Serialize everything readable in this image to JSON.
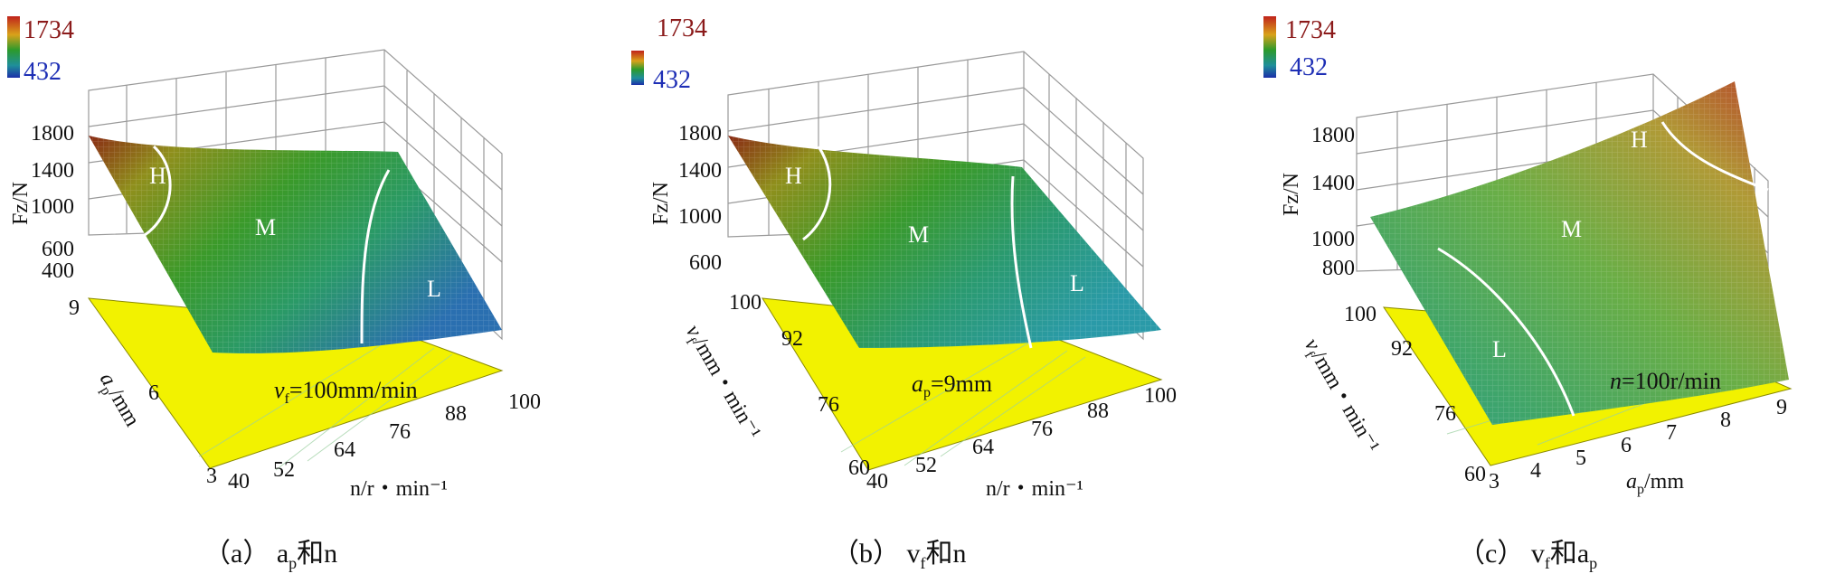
{
  "colorbar": {
    "max": "1734",
    "min": "432"
  },
  "chart_data": [
    {
      "type": "surface",
      "caption": "（a）  a",
      "caption_sub": "p",
      "caption_tail": "和n",
      "z_label": "Fz/N",
      "z_ticks": [
        "1800",
        "1400",
        "1000",
        "600",
        "400"
      ],
      "x_label": "n/r・min⁻¹",
      "x_ticks": [
        "40",
        "52",
        "64",
        "76",
        "88",
        "100"
      ],
      "y_label": "a",
      "y_label_sub": "p",
      "y_label_tail": "/mm",
      "y_ticks": [
        "9",
        "6",
        "3"
      ],
      "fixed_label": "v",
      "fixed_sub": "f",
      "fixed_tail": "=100mm/min",
      "regions": [
        "H",
        "M",
        "L"
      ],
      "zlim": [
        400,
        1800
      ]
    },
    {
      "type": "surface",
      "caption": "（b）  v",
      "caption_sub": "f",
      "caption_tail": "和n",
      "z_label": "Fz/N",
      "z_ticks": [
        "1800",
        "1400",
        "1000",
        "600"
      ],
      "x_label": "n/r・min⁻¹",
      "x_ticks": [
        "40",
        "52",
        "64",
        "76",
        "88",
        "100"
      ],
      "y_label": "v",
      "y_label_sub": "f",
      "y_label_tail": "/mm・min⁻¹",
      "y_ticks": [
        "100",
        "92",
        "76",
        "60"
      ],
      "fixed_label": "a",
      "fixed_sub": "p",
      "fixed_tail": "=9mm",
      "regions": [
        "H",
        "M",
        "L"
      ],
      "zlim": [
        400,
        1800
      ]
    },
    {
      "type": "surface",
      "caption": "（c）  v",
      "caption_sub": "f",
      "caption_tail": "和a",
      "caption_tail_sub": "p",
      "z_label": "Fz/N",
      "z_ticks": [
        "1800",
        "1400",
        "1000",
        "800"
      ],
      "x_label": "a",
      "x_label_sub": "p",
      "x_label_tail": "/mm",
      "x_ticks": [
        "3",
        "4",
        "5",
        "6",
        "7",
        "8",
        "9"
      ],
      "y_label": "v",
      "y_label_sub": "f",
      "y_label_tail": "/mm・min⁻¹",
      "y_ticks": [
        "100",
        "92",
        "76",
        "60"
      ],
      "fixed_label": "n",
      "fixed_tail": "=100r/min",
      "regions": [
        "H",
        "M",
        "L"
      ],
      "zlim": [
        600,
        1800
      ]
    }
  ]
}
